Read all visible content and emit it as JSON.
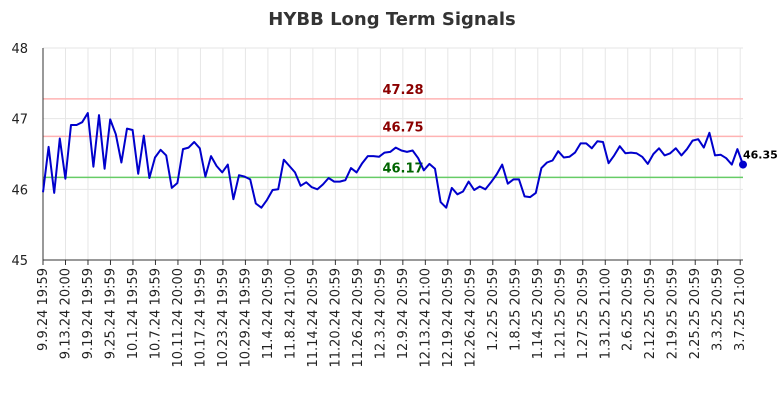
{
  "chart_data": {
    "type": "line",
    "title": "HYBB Long Term Signals",
    "xlabel": "",
    "ylabel": "",
    "ylim": [
      45,
      48
    ],
    "y_ticks": [
      "45",
      "46",
      "47",
      "48"
    ],
    "grid": true,
    "x_tick_labels": [
      "9.9.24 19:59",
      "9.13.24 20:00",
      "9.19.24 19:59",
      "9.25.24 19:59",
      "10.1.24 19:59",
      "10.7.24 19:59",
      "10.11.24 20:00",
      "10.17.24 19:59",
      "10.23.24 19:59",
      "10.29.24 19:59",
      "11.4.24 20:59",
      "11.8.24 21:00",
      "11.14.24 20:59",
      "11.20.24 20:59",
      "11.26.24 20:59",
      "12.3.24 20:59",
      "12.9.24 20:59",
      "12.13.24 21:00",
      "12.19.24 20:59",
      "12.26.24 20:59",
      "1.2.25 20:59",
      "1.8.25 20:59",
      "1.14.25 20:59",
      "1.21.25 20:59",
      "1.27.25 20:59",
      "1.31.25 21:00",
      "2.6.25 20:59",
      "2.12.25 20:59",
      "2.19.25 20:59",
      "2.25.25 20:59",
      "3.3.25 20:59",
      "3.7.25 21:00"
    ],
    "series": [
      {
        "color": "#0000cc",
        "values": [
          45.96,
          46.6,
          45.95,
          46.72,
          46.15,
          46.91,
          46.91,
          46.95,
          47.08,
          46.32,
          47.05,
          46.29,
          46.99,
          46.78,
          46.38,
          46.86,
          46.84,
          46.22,
          46.76,
          46.16,
          46.45,
          46.56,
          46.48,
          46.02,
          46.09,
          46.57,
          46.59,
          46.67,
          46.58,
          46.18,
          46.47,
          46.33,
          46.24,
          46.35,
          45.86,
          46.2,
          46.18,
          46.14,
          45.8,
          45.74,
          45.85,
          45.99,
          46.0,
          46.42,
          46.33,
          46.24,
          46.05,
          46.1,
          46.03,
          46.0,
          46.07,
          46.16,
          46.11,
          46.11,
          46.13,
          46.3,
          46.24,
          46.37,
          46.47,
          46.47,
          46.46,
          46.52,
          46.53,
          46.59,
          46.55,
          46.53,
          46.55,
          46.44,
          46.27,
          46.36,
          46.29,
          45.82,
          45.74,
          46.02,
          45.93,
          45.97,
          46.11,
          45.99,
          46.04,
          46.0,
          46.1,
          46.21,
          46.35,
          46.08,
          46.14,
          46.14,
          45.9,
          45.89,
          45.95,
          46.3,
          46.38,
          46.41,
          46.54,
          46.45,
          46.46,
          46.52,
          46.65,
          46.65,
          46.58,
          46.68,
          46.67,
          46.37,
          46.48,
          46.61,
          46.51,
          46.52,
          46.51,
          46.46,
          46.36,
          46.5,
          46.58,
          46.48,
          46.51,
          46.58,
          46.48,
          46.57,
          46.69,
          46.71,
          46.59,
          46.8,
          46.48,
          46.49,
          46.44,
          46.35,
          46.57,
          46.35
        ]
      }
    ],
    "reference_lines": [
      {
        "value": 47.28,
        "label": "47.28",
        "line_color": "#ffb3b3",
        "label_color": "#8b0000"
      },
      {
        "value": 46.75,
        "label": "46.75",
        "line_color": "#ffb3b3",
        "label_color": "#8b0000"
      },
      {
        "value": 46.17,
        "label": "46.17",
        "line_color": "#66cc66",
        "label_color": "#006400"
      }
    ],
    "last_point": {
      "value": 46.35,
      "label": "46.35",
      "color": "#0000cc"
    }
  }
}
